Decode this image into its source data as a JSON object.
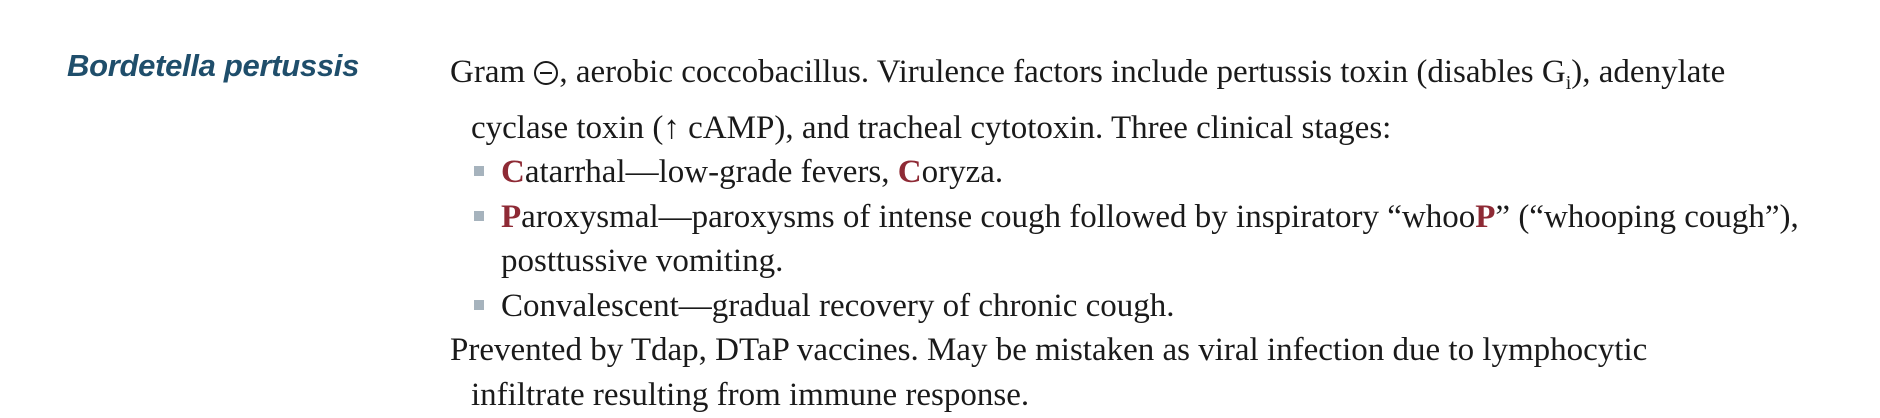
{
  "heading": "Bordetella pertussis",
  "para1": {
    "line1_start": "Gram ",
    "gram_symbol": "minus-circle-icon",
    "line1_mid": ", aerobic coccobacillus. Virulence factors include pertussis toxin (disables G",
    "line1_sub": "i",
    "line1_end": "), adenylate",
    "line2": "cyclase toxin (↑ cAMP), and tracheal cytotoxin. Three clinical stages:"
  },
  "stages": [
    {
      "segments": [
        {
          "text": "C",
          "red": true
        },
        {
          "text": "atarrhal—low-grade fevers, ",
          "red": false
        },
        {
          "text": "C",
          "red": true
        },
        {
          "text": "oryza.",
          "red": false
        }
      ]
    },
    {
      "segments": [
        {
          "text": "P",
          "red": true
        },
        {
          "text": "aroxysmal—paroxysms of intense cough followed by inspiratory “whoo",
          "red": false
        },
        {
          "text": "P",
          "red": true
        },
        {
          "text": "” (“whooping cough”),",
          "red": false
        }
      ],
      "continuation": "posttussive vomiting."
    },
    {
      "segments": [
        {
          "text": "Convalescent—gradual recovery of chronic cough.",
          "red": false
        }
      ]
    }
  ],
  "para2": {
    "line1": "Prevented by Tdap, DTaP vaccines. May be mistaken as viral infection due to lymphocytic",
    "line2": "infiltrate resulting from immune response."
  },
  "colors": {
    "heading": "#1f4e6b",
    "accent_red": "#8e2a35",
    "bullet": "#a6b3bd",
    "text": "#1a1a1a"
  }
}
